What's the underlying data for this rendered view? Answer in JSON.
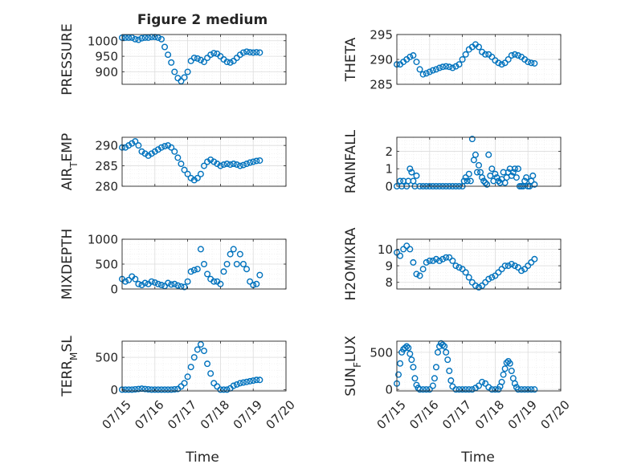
{
  "figure": {
    "title": "Figure 2 medium",
    "xlabel": "Time",
    "colors": {
      "marker": "#0072BD",
      "axis": "#262626",
      "grid": "#dcdcdc",
      "minorgrid": "#ececec"
    }
  },
  "chart_data": [
    {
      "type": "scatter",
      "marker": "circle-open",
      "grid": true,
      "ylabel": "PRESSURE",
      "ylim": [
        860,
        1020
      ],
      "yticks": [
        "1000",
        "950",
        "900"
      ],
      "x": [
        15.0,
        15.1,
        15.2,
        15.3,
        15.4,
        15.5,
        15.6,
        15.7,
        15.8,
        15.9,
        16.0,
        16.1,
        16.2,
        16.3,
        16.4,
        16.5,
        16.6,
        16.7,
        16.8,
        16.9,
        17.0,
        17.1,
        17.2,
        17.3,
        17.4,
        17.5,
        17.6,
        17.7,
        17.8,
        17.9,
        18.0,
        18.1,
        18.2,
        18.3,
        18.4,
        18.5,
        18.6,
        18.7,
        18.8,
        18.9,
        19.0,
        19.1,
        19.2
      ],
      "y": [
        1010,
        1010,
        1010,
        1010,
        1005,
        1003,
        1008,
        1010,
        1010,
        1012,
        1012,
        1010,
        1005,
        980,
        955,
        930,
        900,
        880,
        870,
        882,
        900,
        935,
        945,
        943,
        938,
        932,
        945,
        955,
        960,
        958,
        950,
        940,
        932,
        930,
        935,
        945,
        955,
        962,
        965,
        963,
        962,
        963,
        962
      ]
    },
    {
      "type": "scatter",
      "marker": "circle-open",
      "grid": true,
      "ylabel": "THETA",
      "ylim": [
        285,
        295
      ],
      "yticks": [
        "295",
        "290",
        "285"
      ],
      "x": [
        15.0,
        15.1,
        15.2,
        15.3,
        15.4,
        15.5,
        15.6,
        15.7,
        15.8,
        15.9,
        16.0,
        16.1,
        16.2,
        16.3,
        16.4,
        16.5,
        16.6,
        16.7,
        16.8,
        16.9,
        17.0,
        17.1,
        17.2,
        17.3,
        17.4,
        17.5,
        17.6,
        17.7,
        17.8,
        17.9,
        18.0,
        18.1,
        18.2,
        18.3,
        18.4,
        18.5,
        18.6,
        18.7,
        18.8,
        18.9,
        19.0,
        19.1,
        19.2
      ],
      "y": [
        289,
        289,
        289.5,
        290,
        290.5,
        290.8,
        289.5,
        288,
        287,
        287.2,
        287.5,
        287.8,
        288,
        288.3,
        288.5,
        288.6,
        288.5,
        288.3,
        288.6,
        289,
        290,
        291,
        292,
        292.5,
        293,
        292.5,
        291.5,
        291,
        291,
        290.5,
        289.8,
        289.3,
        289,
        289.3,
        290,
        290.8,
        291,
        290.8,
        290.5,
        290,
        289.5,
        289.3,
        289.2
      ]
    },
    {
      "type": "scatter",
      "marker": "circle-open",
      "grid": true,
      "ylabel": "AIR_TEMP",
      "ylim": [
        280,
        292
      ],
      "yticks": [
        "290",
        "285",
        "280"
      ],
      "x": [
        15.0,
        15.1,
        15.2,
        15.3,
        15.4,
        15.5,
        15.6,
        15.7,
        15.8,
        15.9,
        16.0,
        16.1,
        16.2,
        16.3,
        16.4,
        16.5,
        16.6,
        16.7,
        16.8,
        16.9,
        17.0,
        17.1,
        17.2,
        17.3,
        17.4,
        17.5,
        17.6,
        17.7,
        17.8,
        17.9,
        18.0,
        18.1,
        18.2,
        18.3,
        18.4,
        18.5,
        18.6,
        18.7,
        18.8,
        18.9,
        19.0,
        19.1,
        19.2
      ],
      "y": [
        289.5,
        289.5,
        290,
        290.5,
        291,
        290,
        288.5,
        288,
        287.5,
        288,
        288.5,
        289,
        289.5,
        289.8,
        290,
        289.5,
        288.5,
        287,
        285.5,
        284,
        283,
        282,
        281.5,
        282,
        283,
        285,
        286,
        286.5,
        286,
        285.5,
        285,
        285.3,
        285.5,
        285.3,
        285.5,
        285.3,
        285,
        285.2,
        285.5,
        285.8,
        286,
        286.2,
        286.3
      ]
    },
    {
      "type": "scatter",
      "marker": "circle-open",
      "grid": true,
      "ylabel": "RAINFALL",
      "ylim": [
        0,
        2.8
      ],
      "yticks": [
        "2",
        "1",
        "0"
      ],
      "x": [
        15.0,
        15.1,
        15.15,
        15.2,
        15.3,
        15.35,
        15.4,
        15.45,
        15.5,
        15.55,
        15.6,
        15.7,
        15.8,
        15.9,
        16.0,
        16.1,
        16.2,
        16.3,
        16.4,
        16.5,
        16.6,
        16.7,
        16.8,
        16.9,
        17.0,
        17.05,
        17.1,
        17.15,
        17.2,
        17.25,
        17.3,
        17.35,
        17.4,
        17.45,
        17.5,
        17.55,
        17.6,
        17.65,
        17.7,
        17.75,
        17.8,
        17.85,
        17.9,
        17.95,
        18.0,
        18.05,
        18.1,
        18.15,
        18.2,
        18.25,
        18.3,
        18.35,
        18.4,
        18.45,
        18.5,
        18.55,
        18.6,
        18.65,
        18.7,
        18.75,
        18.8,
        18.85,
        18.9,
        18.95,
        19.0,
        19.05,
        19.1,
        19.15,
        19.2
      ],
      "y": [
        0,
        0.3,
        0,
        0.3,
        0,
        0.3,
        1.0,
        0.8,
        0.3,
        0,
        0.6,
        0,
        0,
        0,
        0,
        0,
        0,
        0,
        0,
        0,
        0,
        0,
        0,
        0,
        0,
        0.3,
        0.5,
        0.3,
        0.7,
        0.3,
        2.7,
        1.5,
        1.8,
        0.8,
        1.2,
        0.8,
        0.5,
        0.3,
        0.2,
        0.1,
        1.8,
        0.6,
        1.0,
        0.3,
        0.7,
        0.5,
        0.3,
        0.2,
        0.4,
        0.8,
        0.2,
        0.5,
        0.8,
        1.0,
        0.6,
        0.8,
        1.0,
        0.5,
        1.0,
        0,
        0,
        0,
        0.3,
        0.5,
        0,
        0,
        0.3,
        0.6,
        0.1
      ]
    },
    {
      "type": "scatter",
      "marker": "circle-open",
      "grid": true,
      "ylabel": "MIXDEPTH",
      "ylim": [
        0,
        1000
      ],
      "yticks": [
        "1000",
        "500",
        "0"
      ],
      "x": [
        15.0,
        15.1,
        15.2,
        15.3,
        15.4,
        15.5,
        15.6,
        15.7,
        15.8,
        15.9,
        16.0,
        16.1,
        16.2,
        16.3,
        16.4,
        16.5,
        16.6,
        16.7,
        16.8,
        16.9,
        17.0,
        17.1,
        17.2,
        17.3,
        17.4,
        17.5,
        17.6,
        17.7,
        17.8,
        17.9,
        18.0,
        18.1,
        18.2,
        18.3,
        18.4,
        18.5,
        18.6,
        18.7,
        18.8,
        18.9,
        19.0,
        19.1,
        19.2
      ],
      "y": [
        200,
        150,
        180,
        250,
        200,
        100,
        80,
        120,
        100,
        150,
        130,
        100,
        80,
        60,
        120,
        90,
        100,
        70,
        50,
        40,
        150,
        350,
        380,
        400,
        800,
        500,
        300,
        200,
        150,
        150,
        100,
        350,
        500,
        700,
        800,
        500,
        700,
        500,
        400,
        150,
        80,
        100,
        280
      ]
    },
    {
      "type": "scatter",
      "marker": "circle-open",
      "grid": true,
      "ylabel": "H2OMIXRA",
      "ylim": [
        7.6,
        10.6
      ],
      "yticks": [
        "10",
        "9",
        "8"
      ],
      "x": [
        15.0,
        15.1,
        15.2,
        15.3,
        15.4,
        15.5,
        15.6,
        15.7,
        15.8,
        15.9,
        16.0,
        16.1,
        16.2,
        16.3,
        16.4,
        16.5,
        16.6,
        16.7,
        16.8,
        16.9,
        17.0,
        17.1,
        17.2,
        17.3,
        17.4,
        17.5,
        17.6,
        17.7,
        17.8,
        17.9,
        18.0,
        18.1,
        18.2,
        18.3,
        18.4,
        18.5,
        18.6,
        18.7,
        18.8,
        18.9,
        19.0,
        19.1,
        19.2
      ],
      "y": [
        9.8,
        9.6,
        10.0,
        10.2,
        10.0,
        9.2,
        8.5,
        8.4,
        8.8,
        9.2,
        9.3,
        9.3,
        9.4,
        9.3,
        9.4,
        9.5,
        9.5,
        9.3,
        9.0,
        8.9,
        8.8,
        8.6,
        8.3,
        8.0,
        7.8,
        7.7,
        7.8,
        8.0,
        8.2,
        8.3,
        8.4,
        8.6,
        8.8,
        9.0,
        9.0,
        9.1,
        9.0,
        8.9,
        8.7,
        8.8,
        9.0,
        9.2,
        9.4
      ]
    },
    {
      "type": "scatter",
      "marker": "circle-open",
      "grid": true,
      "ylabel": "TERR_MSL",
      "ylim": [
        -20,
        750
      ],
      "yticks": [
        "500",
        "0"
      ],
      "x": [
        15.0,
        15.1,
        15.2,
        15.3,
        15.4,
        15.5,
        15.6,
        15.7,
        15.8,
        15.9,
        16.0,
        16.1,
        16.2,
        16.3,
        16.4,
        16.5,
        16.6,
        16.7,
        16.8,
        16.9,
        17.0,
        17.1,
        17.2,
        17.3,
        17.4,
        17.5,
        17.6,
        17.7,
        17.8,
        17.9,
        18.0,
        18.1,
        18.2,
        18.3,
        18.4,
        18.5,
        18.6,
        18.7,
        18.8,
        18.9,
        19.0,
        19.1,
        19.2
      ],
      "y": [
        0,
        0,
        0,
        0,
        5,
        10,
        15,
        10,
        5,
        0,
        0,
        0,
        0,
        0,
        0,
        0,
        5,
        10,
        50,
        100,
        200,
        350,
        500,
        620,
        700,
        600,
        400,
        250,
        100,
        50,
        0,
        0,
        0,
        20,
        60,
        80,
        100,
        110,
        120,
        130,
        140,
        150,
        150
      ]
    },
    {
      "type": "scatter",
      "marker": "circle-open",
      "grid": true,
      "ylabel": "SUN_FLUX",
      "ylim": [
        -20,
        650
      ],
      "yticks": [
        "500",
        "0"
      ],
      "x": [
        15.0,
        15.05,
        15.1,
        15.15,
        15.2,
        15.25,
        15.3,
        15.35,
        15.4,
        15.45,
        15.5,
        15.55,
        15.6,
        15.65,
        15.7,
        15.8,
        15.9,
        16.0,
        16.1,
        16.15,
        16.2,
        16.25,
        16.3,
        16.35,
        16.4,
        16.45,
        16.5,
        16.55,
        16.6,
        16.65,
        16.7,
        16.8,
        16.9,
        17.0,
        17.1,
        17.2,
        17.3,
        17.4,
        17.5,
        17.6,
        17.7,
        17.8,
        17.9,
        18.0,
        18.1,
        18.15,
        18.2,
        18.25,
        18.3,
        18.35,
        18.4,
        18.45,
        18.5,
        18.55,
        18.6,
        18.65,
        18.7,
        18.8,
        18.9,
        19.0,
        19.1,
        19.2
      ],
      "y": [
        80,
        200,
        350,
        500,
        540,
        560,
        580,
        560,
        480,
        400,
        300,
        150,
        60,
        20,
        0,
        0,
        0,
        0,
        50,
        150,
        300,
        500,
        580,
        620,
        600,
        580,
        500,
        400,
        250,
        120,
        40,
        0,
        0,
        0,
        0,
        0,
        0,
        20,
        50,
        100,
        80,
        30,
        0,
        0,
        0,
        40,
        100,
        200,
        280,
        360,
        380,
        350,
        250,
        150,
        80,
        30,
        0,
        0,
        0,
        0,
        0,
        0
      ]
    }
  ],
  "x_axis": {
    "xlim": [
      15,
      20
    ],
    "ticks": [
      "07/15",
      "07/16",
      "07/17",
      "07/18",
      "07/19",
      "07/20"
    ]
  }
}
